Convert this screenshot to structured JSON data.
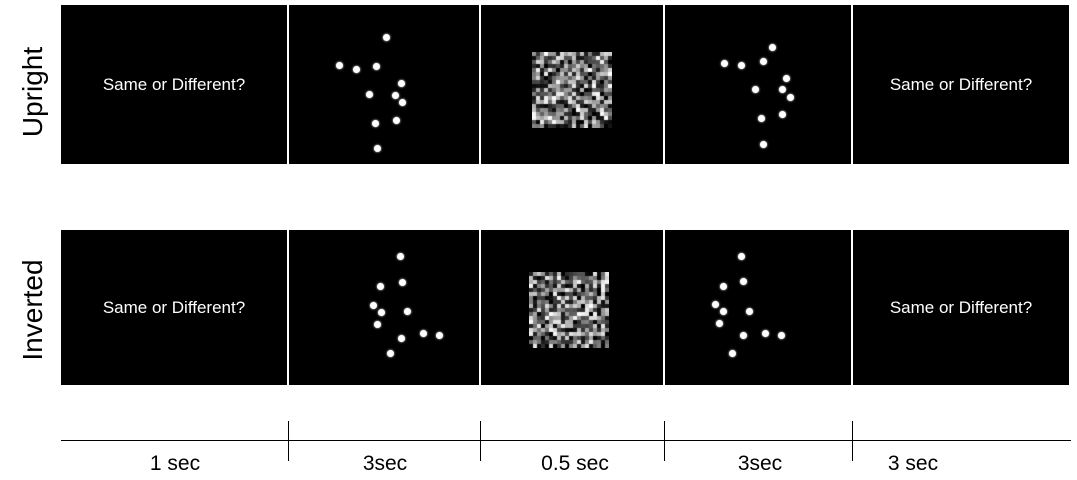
{
  "rows": [
    {
      "label": "Upright",
      "panels": [
        {
          "type": "prompt",
          "text": "Same or Different?"
        },
        {
          "type": "dots",
          "dots": [
            [
              50,
              60
            ],
            [
              67,
              64
            ],
            [
              97,
              32
            ],
            [
              87,
              61
            ],
            [
              112,
              78
            ],
            [
              106,
              90
            ],
            [
              113,
              97
            ],
            [
              80,
              89
            ],
            [
              86,
              118
            ],
            [
              107,
              115
            ],
            [
              88,
              143
            ]
          ]
        },
        {
          "type": "mask"
        },
        {
          "type": "dots",
          "dots": [
            [
              59,
              58
            ],
            [
              76,
              60
            ],
            [
              107,
              42
            ],
            [
              98,
              56
            ],
            [
              121,
              73
            ],
            [
              117,
              84
            ],
            [
              125,
              92
            ],
            [
              90,
              84
            ],
            [
              96,
              113
            ],
            [
              117,
              109
            ],
            [
              98,
              139
            ]
          ]
        },
        {
          "type": "prompt",
          "text": "Same or Different?"
        }
      ]
    },
    {
      "label": "Inverted",
      "panels": [
        {
          "type": "prompt",
          "text": "Same or Different?"
        },
        {
          "type": "dots",
          "dots": [
            [
              111,
              26
            ],
            [
              113,
              52
            ],
            [
              91,
              56
            ],
            [
              84,
              75
            ],
            [
              92,
              82
            ],
            [
              118,
              81
            ],
            [
              88,
              94
            ],
            [
              112,
              108
            ],
            [
              134,
              103
            ],
            [
              150,
              105
            ],
            [
              101,
              123
            ]
          ]
        },
        {
          "type": "mask"
        },
        {
          "type": "dots",
          "dots": [
            [
              76,
              26
            ],
            [
              78,
              51
            ],
            [
              58,
              56
            ],
            [
              50,
              74
            ],
            [
              58,
              81
            ],
            [
              84,
              81
            ],
            [
              54,
              93
            ],
            [
              78,
              105
            ],
            [
              100,
              103
            ],
            [
              116,
              105
            ],
            [
              67,
              123
            ]
          ]
        },
        {
          "type": "prompt",
          "text": "Same or Different?"
        }
      ]
    }
  ],
  "timeline": [
    "1 sec",
    "3sec",
    "0.5 sec",
    "3sec",
    "3 sec"
  ]
}
